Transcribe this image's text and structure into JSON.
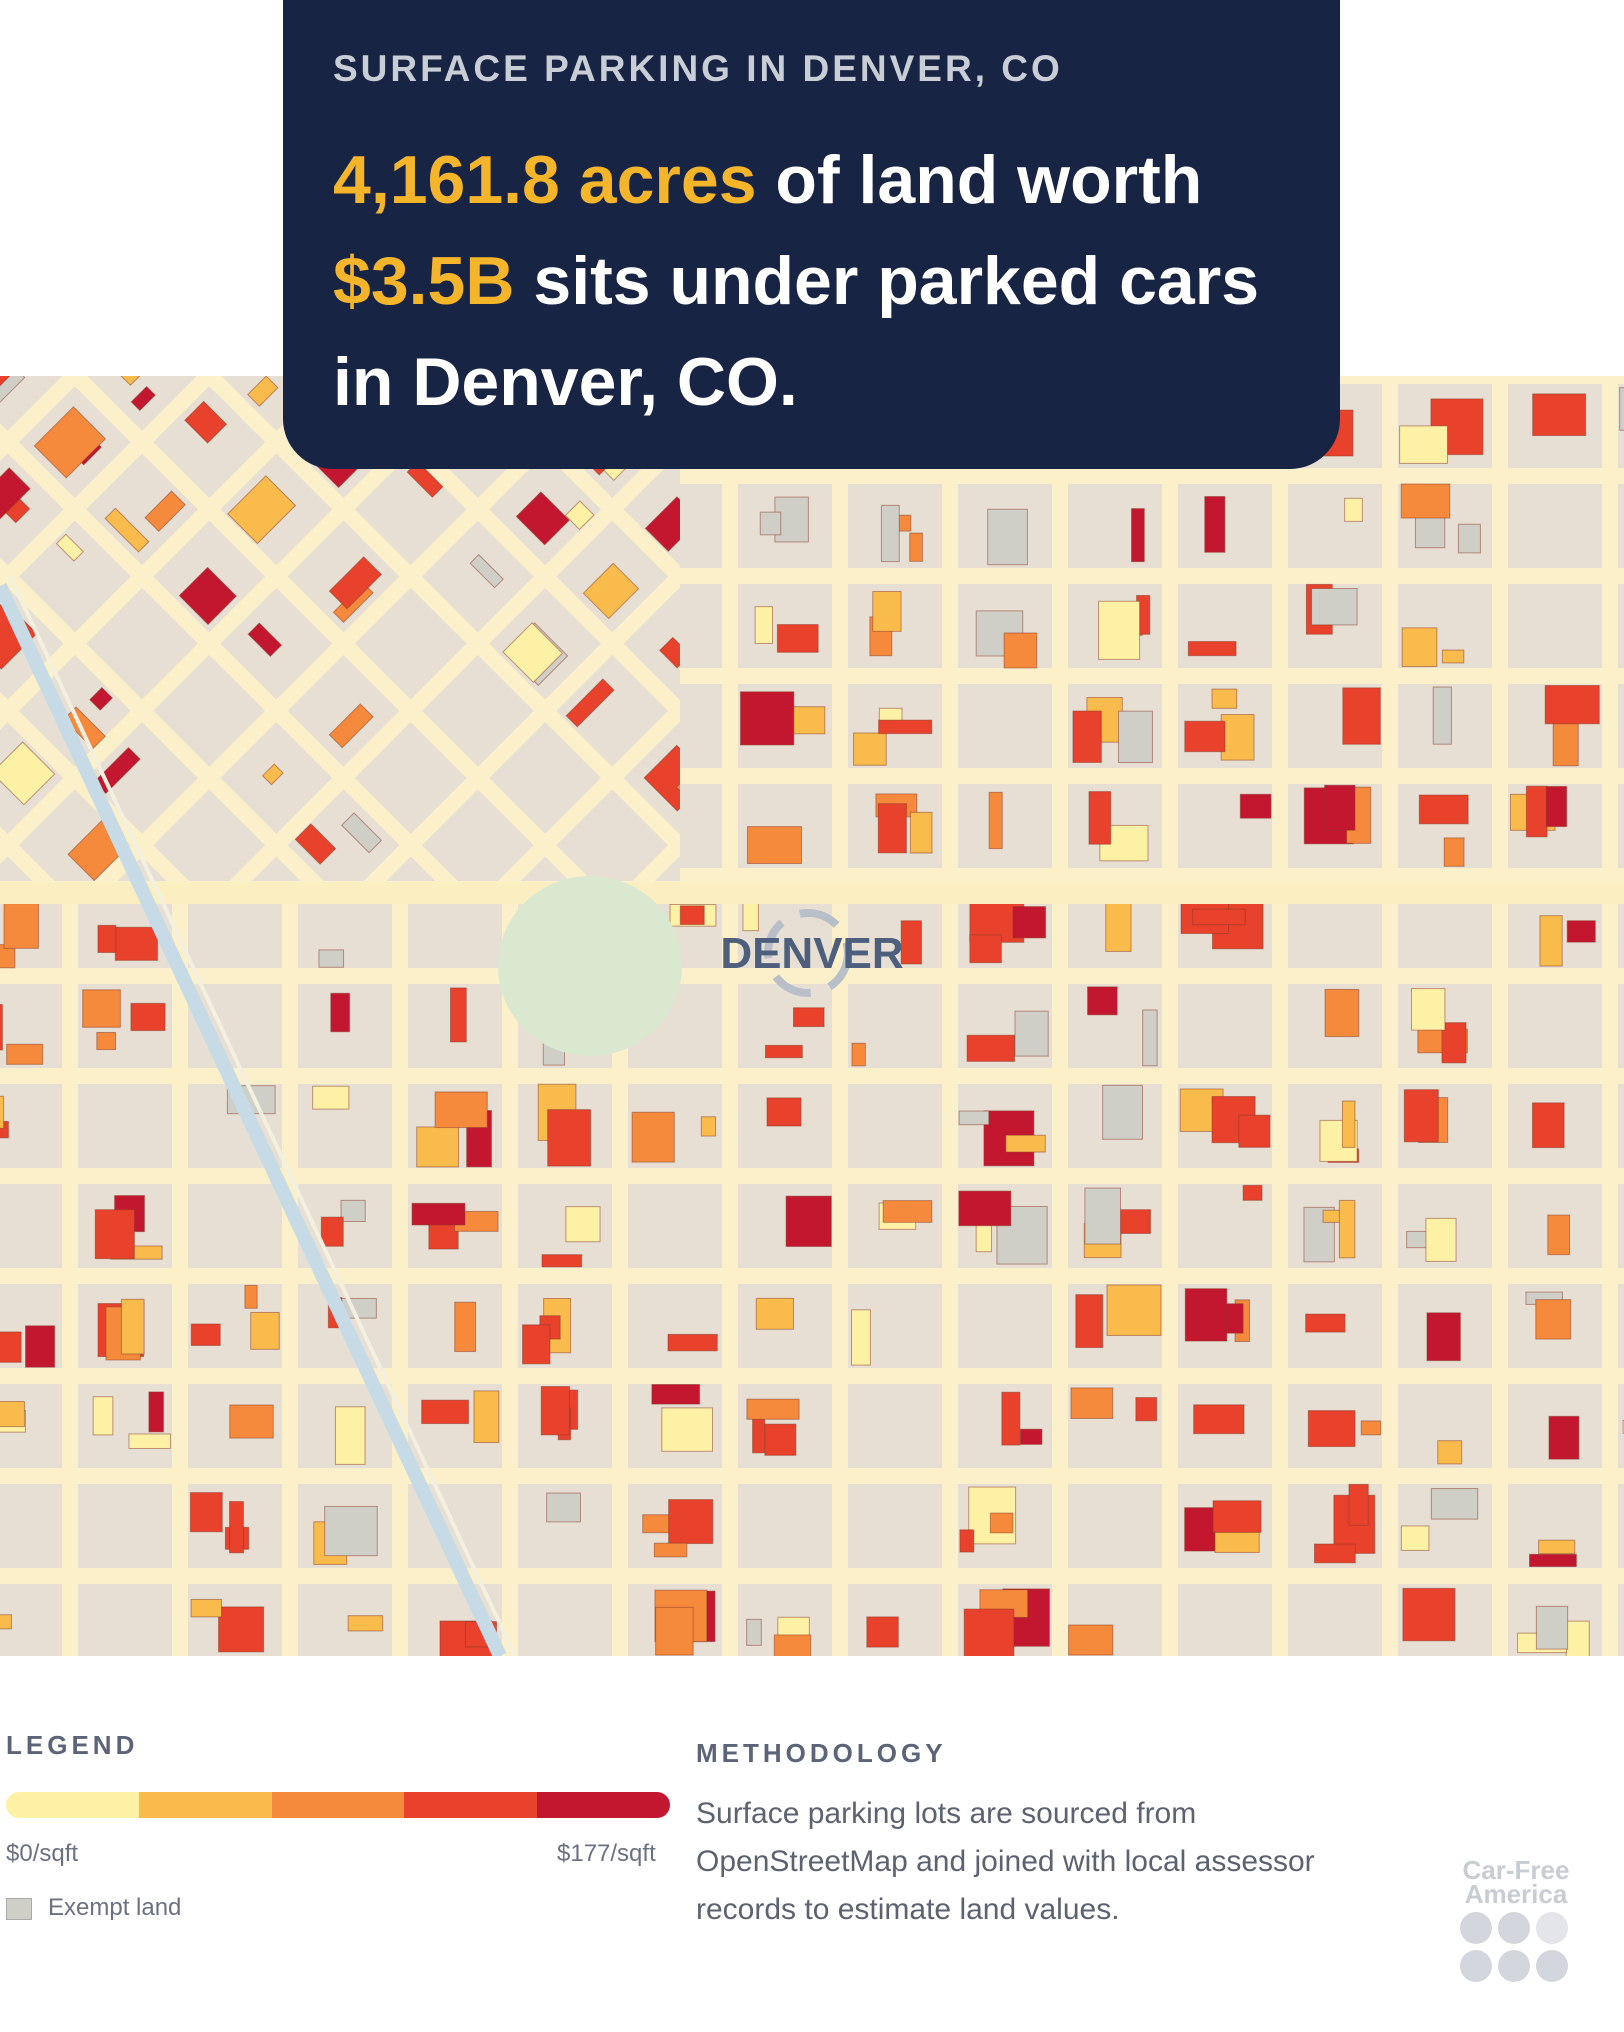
{
  "header": {
    "kicker": "SURFACE PARKING IN DENVER, CO",
    "headline": [
      "4,161.8 acres",
      "of land worth",
      "$3.5B",
      "sits under parked cars in Denver, CO."
    ]
  },
  "map": {
    "label": "DENVER"
  },
  "legend": {
    "title": "LEGEND",
    "colors": [
      "#fdf1a6",
      "#f8bb4c",
      "#f58a3c",
      "#e8412c",
      "#c31730"
    ],
    "min_label": "$0/sqft",
    "max_label": "$177/sqft",
    "exempt_label": "Exempt land",
    "exempt_color": "#cfcfc8"
  },
  "methodology": {
    "title": "METHODOLOGY",
    "text": "Surface parking lots are sourced from OpenStreetMap and joined with local assessor records to estimate land values."
  },
  "logo": {
    "line1": "Car-Free",
    "line2": "America"
  }
}
